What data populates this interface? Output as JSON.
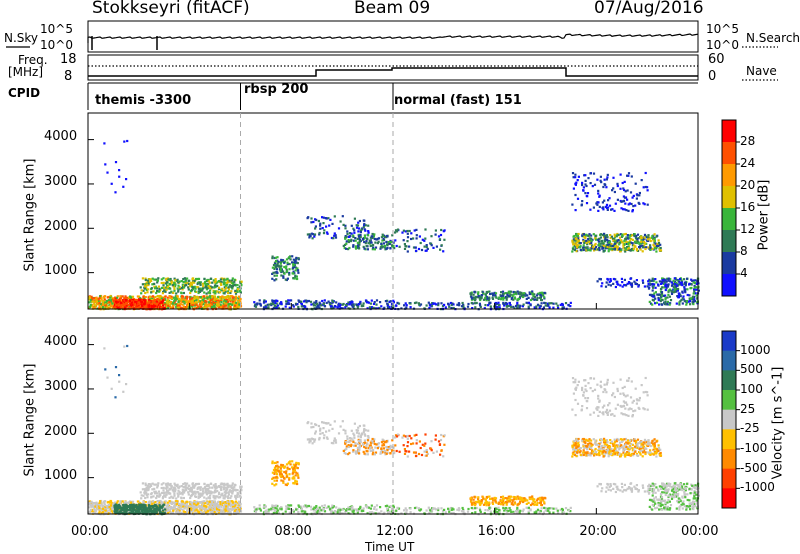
{
  "header": {
    "radar": "Stokkseyri (fitACF)",
    "beam": "Beam 09",
    "date": "07/Aug/2016"
  },
  "nsky_panel": {
    "left_label": "N.Sky",
    "right_label": "N.Search",
    "left_ticks": [
      "10^5",
      "10^0"
    ],
    "right_ticks": [
      "10^5",
      "10^0"
    ]
  },
  "freq_panel": {
    "left_label": "Freq.",
    "left_unit": "[MHz]",
    "left_ticks": [
      "18",
      "8"
    ],
    "right_label": "Nave",
    "right_ticks": [
      "60",
      "0"
    ]
  },
  "cpid_panel": {
    "label": "CPID",
    "programs": [
      {
        "name": "themis -3300",
        "start": "00:00"
      },
      {
        "name": "rbsp 200",
        "start": "06:00"
      },
      {
        "name": "normal (fast) 151",
        "start": "12:00"
      }
    ]
  },
  "chart_data": [
    {
      "type": "heatmap",
      "name": "power",
      "ylabel": "Slant Range [km]",
      "xlabel": "",
      "ylim": [
        180,
        4600
      ],
      "yticks": [
        "1000",
        "2000",
        "3000",
        "4000"
      ],
      "colorbar": {
        "label": "Power [dB]",
        "ticks": [
          "4",
          "8",
          "12",
          "16",
          "20",
          "24",
          "28"
        ],
        "colors": [
          "#1010ff",
          "#1a3aa0",
          "#2f7a55",
          "#39b53a",
          "#e0c000",
          "#ff9a00",
          "#ff5000",
          "#ff0000"
        ]
      }
    },
    {
      "type": "heatmap",
      "name": "velocity",
      "ylabel": "Slant Range [km]",
      "xlabel": "Time UT",
      "ylim": [
        180,
        4600
      ],
      "yticks": [
        "1000",
        "2000",
        "3000",
        "4000"
      ],
      "xticks": [
        "00:00",
        "04:00",
        "08:00",
        "12:00",
        "16:00",
        "20:00",
        "00:00"
      ],
      "colorbar": {
        "label": "Velocity [m s^-1]",
        "ticks": [
          "1000",
          "500",
          "100",
          "25",
          "-25",
          "-100",
          "-500",
          "-1000"
        ],
        "colors": [
          "#1a3ac8",
          "#2a6aa8",
          "#2f7a55",
          "#55c040",
          "#c8c8c8",
          "#ffc000",
          "#ff8a00",
          "#ff4000",
          "#ff0000"
        ]
      }
    }
  ]
}
